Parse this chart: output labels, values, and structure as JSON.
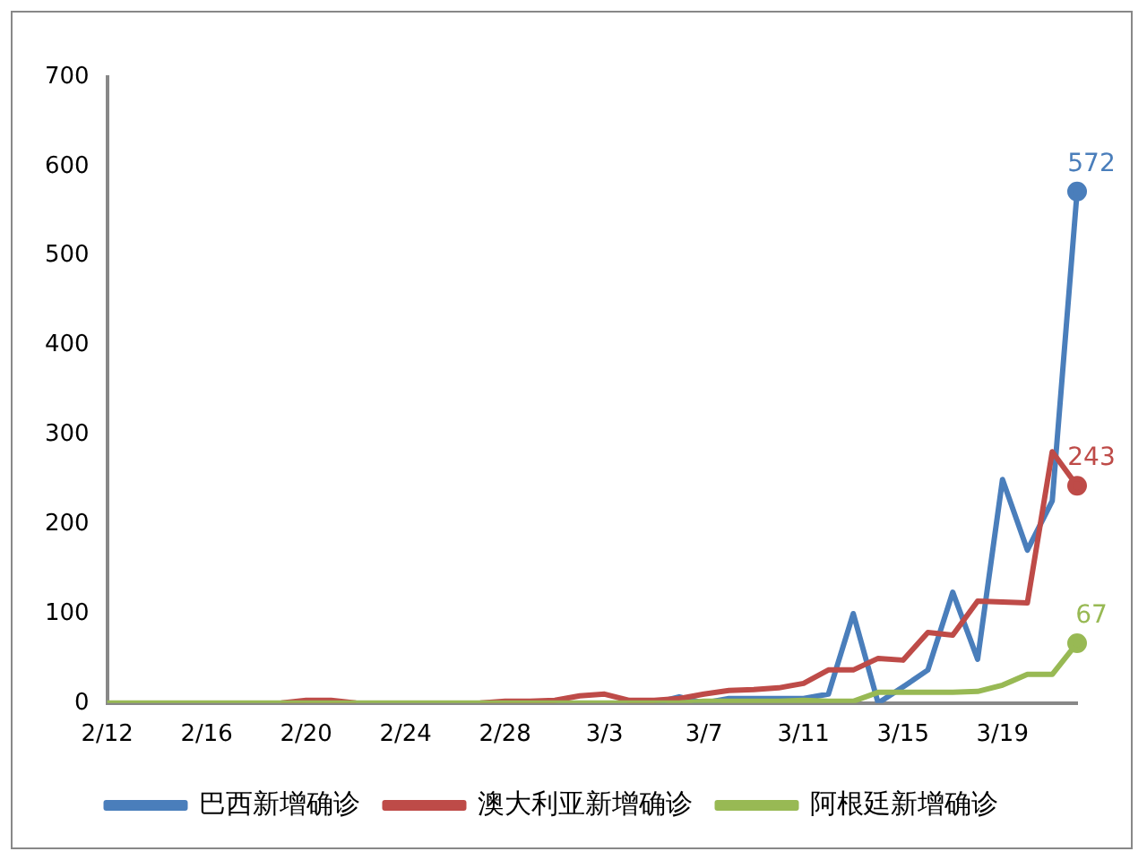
{
  "chart_data": {
    "type": "line",
    "categories": [
      "2/12",
      null,
      null,
      null,
      "2/16",
      null,
      null,
      null,
      "2/20",
      null,
      null,
      null,
      "2/24",
      null,
      null,
      null,
      "2/28",
      null,
      null,
      null,
      "3/3",
      null,
      null,
      null,
      "3/7",
      null,
      null,
      null,
      "3/11",
      null,
      null,
      null,
      "3/15",
      null,
      null,
      null,
      "3/19",
      null,
      null,
      null
    ],
    "series": [
      {
        "name": "巴西新增确诊",
        "color": "#4a7ebb",
        "values": [
          null,
          null,
          null,
          null,
          null,
          null,
          null,
          null,
          null,
          null,
          null,
          null,
          null,
          null,
          null,
          null,
          null,
          null,
          null,
          null,
          null,
          null,
          0,
          7,
          0,
          5,
          5,
          5,
          5,
          10,
          100,
          0,
          18,
          37,
          124,
          49,
          250,
          171,
          226,
          572
        ],
        "value_labels": [
          null,
          null,
          null,
          null,
          null,
          null,
          null,
          null,
          null,
          null,
          null,
          null,
          null,
          null,
          null,
          null,
          null,
          null,
          null,
          null,
          null,
          null,
          null,
          null,
          null,
          null,
          null,
          null,
          null,
          null,
          null,
          null,
          null,
          null,
          null,
          null,
          null,
          null,
          null,
          "572"
        ]
      },
      {
        "name": "澳大利亚新增确诊",
        "color": "#be4b48",
        "values": [
          null,
          null,
          null,
          null,
          null,
          null,
          null,
          0,
          3,
          3,
          0,
          null,
          null,
          null,
          null,
          0,
          2,
          2,
          3,
          8,
          10,
          3,
          3,
          5,
          10,
          14,
          15,
          17,
          22,
          37,
          37,
          50,
          48,
          79,
          76,
          114,
          113,
          112,
          281,
          243
        ],
        "value_labels": [
          null,
          null,
          null,
          null,
          null,
          null,
          null,
          null,
          null,
          null,
          null,
          null,
          null,
          null,
          null,
          null,
          null,
          null,
          null,
          null,
          null,
          null,
          null,
          null,
          null,
          null,
          null,
          null,
          null,
          null,
          null,
          null,
          null,
          null,
          null,
          null,
          null,
          null,
          null,
          "243"
        ]
      },
      {
        "name": "阿根廷新增确诊",
        "color": "#98b954",
        "values": [
          0,
          0,
          0,
          0,
          0,
          0,
          0,
          0,
          0,
          0,
          0,
          0,
          0,
          0,
          0,
          0,
          0,
          0,
          0,
          0,
          0,
          0,
          0,
          0,
          2,
          2,
          2,
          2,
          3,
          2,
          2,
          12,
          12,
          12,
          12,
          13,
          20,
          32,
          32,
          67
        ],
        "value_labels": [
          null,
          null,
          null,
          null,
          null,
          null,
          null,
          null,
          null,
          null,
          null,
          null,
          null,
          null,
          null,
          null,
          null,
          null,
          null,
          null,
          null,
          null,
          null,
          null,
          null,
          null,
          null,
          null,
          null,
          null,
          null,
          null,
          null,
          null,
          null,
          null,
          null,
          null,
          null,
          "67"
        ]
      }
    ],
    "ylim": [
      0,
      700
    ],
    "yticks": [
      0,
      100,
      200,
      300,
      400,
      500,
      600,
      700
    ],
    "grid": false,
    "legend": "bottom"
  }
}
